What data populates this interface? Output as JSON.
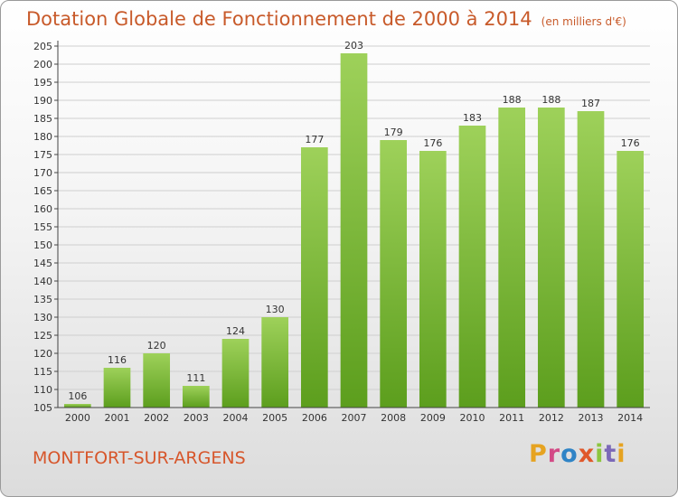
{
  "title": "Dotation Globale de Fonctionnement de 2000 à 2014",
  "unit": "(en milliers d'€)",
  "commune": "MONTFORT-SUR-ARGENS",
  "logo": {
    "text": "Proxiti",
    "letters": [
      {
        "ch": "P",
        "color": "#e6a321"
      },
      {
        "ch": "r",
        "color": "#d34a86"
      },
      {
        "ch": "o",
        "color": "#2f84c6"
      },
      {
        "ch": "x",
        "color": "#e0582a"
      },
      {
        "ch": "i",
        "color": "#8cc63f"
      },
      {
        "ch": "t",
        "color": "#7b68b8"
      },
      {
        "ch": "i",
        "color": "#e6a321"
      }
    ]
  },
  "colors": {
    "bar_top": "#9ed15a",
    "bar_bottom": "#5c9e1d",
    "title": "#c85a2a",
    "axis": "#444444",
    "grid": "#cfcfcf"
  },
  "chart_data": {
    "type": "bar",
    "title": "Dotation Globale de Fonctionnement de 2000 à 2014",
    "categories": [
      "2000",
      "2001",
      "2002",
      "2003",
      "2004",
      "2005",
      "2006",
      "2007",
      "2008",
      "2009",
      "2010",
      "2011",
      "2012",
      "2013",
      "2014"
    ],
    "values": [
      106,
      116,
      120,
      111,
      124,
      130,
      177,
      203,
      179,
      176,
      183,
      188,
      188,
      187,
      176
    ],
    "xlabel": "",
    "ylabel": "",
    "ylim": [
      105,
      205
    ],
    "yticks": [
      105,
      110,
      115,
      120,
      125,
      130,
      135,
      140,
      145,
      150,
      155,
      160,
      165,
      170,
      175,
      180,
      185,
      190,
      195,
      200,
      205
    ],
    "grid": true,
    "data_labels": true
  }
}
